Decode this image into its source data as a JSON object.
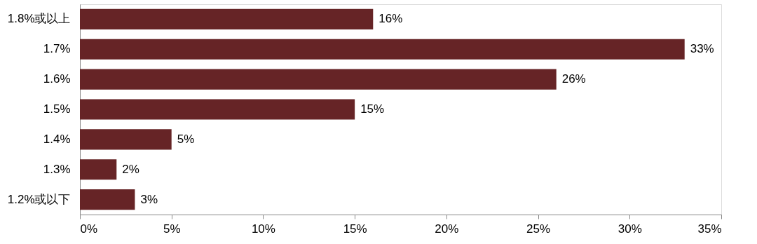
{
  "chart_data": {
    "type": "bar",
    "orientation": "horizontal",
    "categories": [
      "1.8%或以上",
      "1.7%",
      "1.6%",
      "1.5%",
      "1.4%",
      "1.3%",
      "1.2%或以下"
    ],
    "values": [
      16,
      33,
      26,
      15,
      5,
      2,
      3
    ],
    "value_labels": [
      "16%",
      "33%",
      "26%",
      "15%",
      "5%",
      "2%",
      "3%"
    ],
    "color": "#662426",
    "xlim": [
      0,
      35
    ],
    "xticks": [
      {
        "value": 0,
        "label": "0%"
      },
      {
        "value": 5,
        "label": "5%"
      },
      {
        "value": 10,
        "label": "10%"
      },
      {
        "value": 15,
        "label": "15%"
      },
      {
        "value": 20,
        "label": "20%"
      },
      {
        "value": 25,
        "label": "25%"
      },
      {
        "value": 30,
        "label": "30%"
      },
      {
        "value": 35,
        "label": "35%"
      }
    ],
    "grid": false
  }
}
